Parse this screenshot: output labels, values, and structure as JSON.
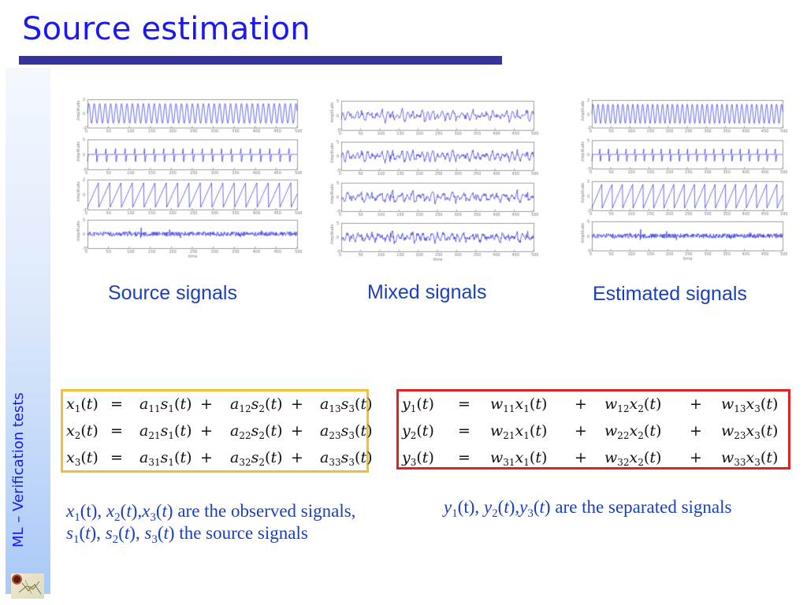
{
  "slide": {
    "title": "Source estimation",
    "sidebar_label": "ML – Verification tests",
    "title_rule_color": "#333399",
    "title_color": "#1a1aee",
    "caption_color": "#1b3fbb"
  },
  "captions": {
    "source": "Source signals",
    "mixed": "Mixed signals",
    "estimated": "Estimated signals"
  },
  "mixing_equations": [
    {
      "lhs": [
        "x",
        "1"
      ],
      "terms": [
        [
          "a",
          "11",
          "s",
          "1"
        ],
        [
          "a",
          "12",
          "s",
          "2"
        ],
        [
          "a",
          "13",
          "s",
          "3"
        ]
      ]
    },
    {
      "lhs": [
        "x",
        "2"
      ],
      "terms": [
        [
          "a",
          "21",
          "s",
          "1"
        ],
        [
          "a",
          "22",
          "s",
          "2"
        ],
        [
          "a",
          "23",
          "s",
          "3"
        ]
      ]
    },
    {
      "lhs": [
        "x",
        "3"
      ],
      "terms": [
        [
          "a",
          "31",
          "s",
          "1"
        ],
        [
          "a",
          "32",
          "s",
          "2"
        ],
        [
          "a",
          "33",
          "s",
          "3"
        ]
      ]
    }
  ],
  "separation_equations": [
    {
      "lhs": [
        "y",
        "1"
      ],
      "terms": [
        [
          "w",
          "11",
          "x",
          "1"
        ],
        [
          "w",
          "12",
          "x",
          "2"
        ],
        [
          "w",
          "13",
          "x",
          "3"
        ]
      ]
    },
    {
      "lhs": [
        "y",
        "2"
      ],
      "terms": [
        [
          "w",
          "21",
          "x",
          "1"
        ],
        [
          "w",
          "22",
          "x",
          "2"
        ],
        [
          "w",
          "23",
          "x",
          "3"
        ]
      ]
    },
    {
      "lhs": [
        "y",
        "3"
      ],
      "terms": [
        [
          "w",
          "31",
          "x",
          "1"
        ],
        [
          "w",
          "32",
          "x",
          "2"
        ],
        [
          "w",
          "33",
          "x",
          "3"
        ]
      ]
    }
  ],
  "notes": {
    "observed_line1": "x1(t), x2(t),x3(t) are the observed signals,",
    "observed_line2": "s1(t), s2(t), s3(t) the source signals",
    "separated": "y1(t), y2(t),y3(t) are the separated signals"
  },
  "chart_data": [
    {
      "type": "line",
      "title": "Source signals",
      "xlabel": "time",
      "ylabel": "Amplitude",
      "xlim": [
        0,
        500
      ],
      "xticks": [
        0,
        50,
        100,
        150,
        200,
        250,
        300,
        350,
        400,
        450,
        500
      ],
      "series": [
        {
          "name": "s1",
          "shape": "sine",
          "period": 13,
          "amplitude": 1.4,
          "ylim": [
            -2,
            2
          ],
          "yticks": [
            -2,
            0,
            2
          ]
        },
        {
          "name": "s2",
          "shape": "spike",
          "period": 23,
          "amplitude": 2.7,
          "ylim": [
            -5,
            5
          ],
          "yticks": [
            -5,
            0,
            5
          ]
        },
        {
          "name": "s3",
          "shape": "sawtooth",
          "period": 27,
          "amplitude": 1.7,
          "ylim": [
            -2,
            2
          ],
          "yticks": [
            -2,
            0,
            2
          ]
        },
        {
          "name": "s4",
          "shape": "noise",
          "amplitude": 1.0,
          "ylim": [
            -5,
            5
          ],
          "yticks": [
            -5,
            0,
            5
          ]
        }
      ],
      "color": "#2a2ae0"
    },
    {
      "type": "line",
      "title": "Mixed signals",
      "xlabel": "time",
      "ylabel": "Amplitude",
      "xlim": [
        0,
        500
      ],
      "xticks": [
        0,
        50,
        100,
        150,
        200,
        250,
        300,
        350,
        400,
        450,
        500
      ],
      "series": [
        {
          "name": "x1",
          "shape": "mix",
          "weights": [
            0.8,
            0.6,
            0.7,
            0.5
          ],
          "ylim": [
            -5,
            5
          ],
          "yticks": [
            -5,
            0,
            5
          ]
        },
        {
          "name": "x2",
          "shape": "mix",
          "weights": [
            1.0,
            0.4,
            0.5,
            0.8
          ],
          "ylim": [
            -5,
            5
          ],
          "yticks": [
            -5,
            0,
            5
          ]
        },
        {
          "name": "x3",
          "shape": "mix",
          "weights": [
            0.6,
            0.5,
            0.9,
            0.7
          ],
          "ylim": [
            -5,
            5
          ],
          "yticks": [
            -5,
            0,
            5
          ]
        },
        {
          "name": "x4",
          "shape": "mix",
          "weights": [
            0.7,
            0.6,
            0.6,
            1.0
          ],
          "ylim": [
            -5,
            5
          ],
          "yticks": [
            -5,
            0,
            5
          ]
        }
      ],
      "color": "#2a2ae0"
    },
    {
      "type": "line",
      "title": "Estimated signals",
      "xlabel": "time",
      "ylabel": "Amplitude",
      "xlim": [
        0,
        500
      ],
      "xticks": [
        0,
        50,
        100,
        150,
        200,
        250,
        300,
        350,
        400,
        450,
        500
      ],
      "series": [
        {
          "name": "y1",
          "shape": "sine",
          "period": 13,
          "amplitude": 1.4,
          "ylim": [
            -2,
            2
          ],
          "yticks": [
            -2,
            0,
            2
          ]
        },
        {
          "name": "y2",
          "shape": "spike",
          "period": 23,
          "amplitude": 2.7,
          "ylim": [
            -5,
            5
          ],
          "yticks": [
            -5,
            0,
            5
          ]
        },
        {
          "name": "y3",
          "shape": "sawtooth",
          "period": 27,
          "amplitude": 1.7,
          "ylim": [
            -2,
            2
          ],
          "yticks": [
            -2,
            0,
            2
          ]
        },
        {
          "name": "y4",
          "shape": "noise",
          "amplitude": 1.0,
          "ylim": [
            -5,
            5
          ],
          "yticks": [
            -5,
            0,
            5
          ]
        }
      ],
      "color": "#2a2ae0"
    }
  ]
}
